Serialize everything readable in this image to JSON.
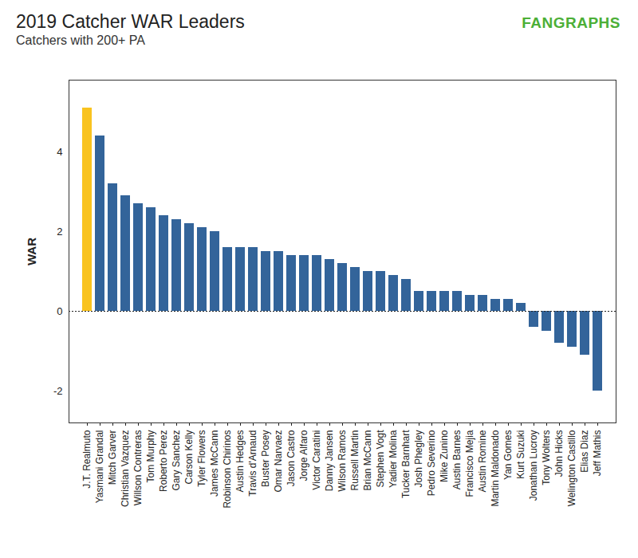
{
  "chart_data": {
    "type": "bar",
    "title": "2019 Catcher WAR Leaders",
    "subtitle": "Catchers with 200+ PA",
    "source": "FANGRAPHS",
    "y_label": "WAR",
    "categories": [
      "J.T. Realmuto",
      "Yasmani Grandal",
      "Mitch Garver",
      "Christian Vazquez",
      "Willson Contreras",
      "Tom Murphy",
      "Roberto Perez",
      "Gary Sanchez",
      "Carson Kelly",
      "Tyler Flowers",
      "James McCann",
      "Robinson Chirinos",
      "Austin Hedges",
      "Travis d'Arnaud",
      "Buster Posey",
      "Omar Narvaez",
      "Jason Castro",
      "Jorge Alfaro",
      "Victor Caratini",
      "Danny Jansen",
      "Wilson Ramos",
      "Russell Martin",
      "Brian McCann",
      "Stephen Vogt",
      "Yadier Molina",
      "Tucker Barnhart",
      "Josh Phegley",
      "Pedro Severino",
      "Mike Zunino",
      "Austin Barnes",
      "Francisco Mejia",
      "Austin Romine",
      "Martin Maldonado",
      "Yan Gomes",
      "Kurt Suzuki",
      "Jonathan Lucroy",
      "Tony Wolters",
      "John Hicks",
      "Welington Castillo",
      "Elias Diaz",
      "Jeff Mathis"
    ],
    "values": [
      5.1,
      4.4,
      3.2,
      2.9,
      2.7,
      2.6,
      2.4,
      2.3,
      2.2,
      2.1,
      2.0,
      1.6,
      1.6,
      1.6,
      1.5,
      1.5,
      1.4,
      1.4,
      1.4,
      1.3,
      1.2,
      1.1,
      1.0,
      1.0,
      0.9,
      0.8,
      0.5,
      0.5,
      0.5,
      0.5,
      0.4,
      0.4,
      0.3,
      0.3,
      0.2,
      -0.4,
      -0.5,
      -0.8,
      -0.9,
      -1.1,
      -2.0
    ],
    "colors": [
      "#f9c31f",
      "#33649a",
      "#33649a",
      "#33649a",
      "#33649a",
      "#33649a",
      "#33649a",
      "#33649a",
      "#33649a",
      "#33649a",
      "#33649a",
      "#33649a",
      "#33649a",
      "#33649a",
      "#33649a",
      "#33649a",
      "#33649a",
      "#33649a",
      "#33649a",
      "#33649a",
      "#33649a",
      "#33649a",
      "#33649a",
      "#33649a",
      "#33649a",
      "#33649a",
      "#33649a",
      "#33649a",
      "#33649a",
      "#33649a",
      "#33649a",
      "#33649a",
      "#33649a",
      "#33649a",
      "#33649a",
      "#33649a",
      "#33649a",
      "#33649a",
      "#33649a",
      "#33649a",
      "#33649a"
    ],
    "ylim": [
      -2.8,
      5.8
    ],
    "yticks": [
      -2,
      0,
      2,
      4
    ],
    "grid": false
  }
}
